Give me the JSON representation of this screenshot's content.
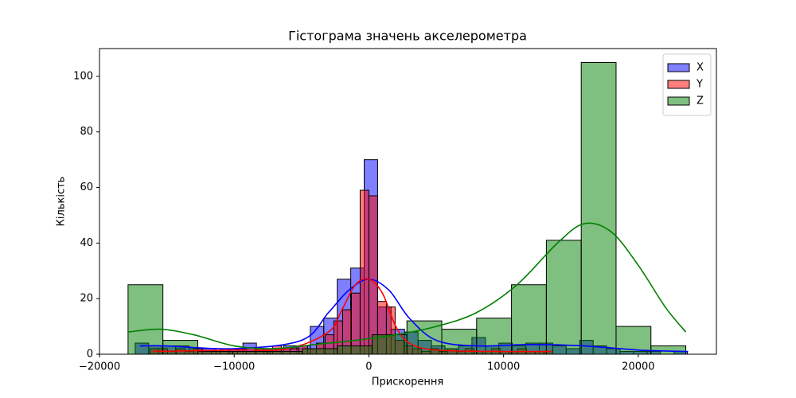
{
  "chart_data": {
    "type": "histogram",
    "title": "Гістограма значень акселерометра",
    "x_label": "Прискорення",
    "y_label": "Кількість",
    "xlim": [
      -20000,
      25800
    ],
    "ylim": [
      0,
      110
    ],
    "xticks": [
      {
        "value": -20000,
        "label": "−20000"
      },
      {
        "value": -10000,
        "label": "−10000"
      },
      0,
      10000,
      20000
    ],
    "yticks": [
      0,
      20,
      40,
      60,
      80,
      100
    ],
    "legend": "upper right",
    "fill_opacity": 0.5,
    "series": [
      {
        "name": "X",
        "color": "#0000ff",
        "bins": [
          -17350,
          -16350,
          -15350,
          -14350,
          -13350,
          -12350,
          -11350,
          -10350,
          -9350,
          -8350,
          -7350,
          -6350,
          -5350,
          -4350,
          -3350,
          -2350,
          -1350,
          -350,
          650,
          1650,
          2650,
          3650,
          4650,
          5650,
          6650,
          7650,
          8650,
          9650,
          10650,
          11650,
          12650,
          13650,
          14650,
          15650,
          16650,
          17650,
          18650,
          19650,
          20650,
          21650,
          22650,
          23650
        ],
        "values": [
          4,
          3,
          3,
          3,
          2,
          2,
          1,
          2,
          4,
          2,
          2,
          3,
          3,
          10,
          13,
          27,
          31,
          70,
          17,
          9,
          8,
          5,
          3,
          2,
          3,
          6,
          3,
          4,
          3,
          4,
          4,
          3,
          2,
          5,
          3,
          2,
          1,
          1,
          1,
          0,
          1
        ],
        "kde": {
          "x": [
            -17000,
            -15000,
            -10000,
            -5000,
            -3000,
            -1500,
            0,
            1500,
            3000,
            5000,
            8000,
            12000,
            16000,
            20000,
            23700
          ],
          "y": [
            3,
            3,
            2,
            5,
            15,
            23,
            27,
            23,
            13,
            5,
            3,
            3.5,
            3,
            1.5,
            1
          ]
        }
      },
      {
        "name": "Y",
        "color": "#ff0000",
        "bins": [
          -16250,
          -15600,
          -14950,
          -14300,
          -13650,
          -13000,
          -12350,
          -11700,
          -11050,
          -10400,
          -9750,
          -9100,
          -8450,
          -7800,
          -7150,
          -6500,
          -5850,
          -5200,
          -4550,
          -3900,
          -3250,
          -2600,
          -1950,
          -1300,
          -650,
          0,
          650,
          1300,
          1950,
          2600,
          3250,
          3900,
          4550,
          5200,
          5850,
          6500,
          7150,
          7800,
          8450,
          9100,
          9750,
          10400,
          11050,
          11700,
          12350,
          13000,
          13650
        ],
        "values": [
          2,
          2,
          1,
          2,
          1,
          2,
          1,
          1,
          2,
          1,
          2,
          1,
          2,
          2,
          3,
          2,
          2,
          3,
          2,
          4,
          7,
          12,
          16,
          22,
          59,
          57,
          19,
          17,
          5,
          3,
          2,
          1,
          2,
          1,
          2,
          1,
          2,
          1,
          1,
          2,
          1,
          1,
          2,
          1,
          1,
          1
        ],
        "kde": {
          "x": [
            -16000,
            -10000,
            -6000,
            -3000,
            -2000,
            -1000,
            0,
            1000,
            2000,
            3000,
            5000,
            10000,
            13600
          ],
          "y": [
            1,
            1.5,
            2,
            8,
            16,
            25,
            27,
            22,
            10,
            4,
            1.5,
            1,
            1
          ]
        }
      },
      {
        "name": "Z",
        "color": "#008000",
        "bins": [
          -17880,
          -15292,
          -12704,
          -10116,
          -7528,
          -4940,
          -2352,
          236,
          2824,
          5412,
          8000,
          10588,
          13176,
          15764,
          18352,
          20940,
          23528
        ],
        "values": [
          25,
          5,
          1,
          1,
          1,
          2,
          3,
          7,
          12,
          9,
          13,
          25,
          41,
          105,
          10,
          3
        ],
        "kde": {
          "x": [
            -17880,
            -15500,
            -13000,
            -10000,
            -7000,
            -4000,
            -1000,
            2000,
            5000,
            8000,
            11000,
            14000,
            16000,
            18000,
            20000,
            22000,
            23528
          ],
          "y": [
            8,
            9,
            7,
            3,
            2,
            3.5,
            5,
            7,
            10,
            15,
            25,
            40,
            47,
            44,
            32,
            17,
            8
          ]
        }
      }
    ]
  }
}
